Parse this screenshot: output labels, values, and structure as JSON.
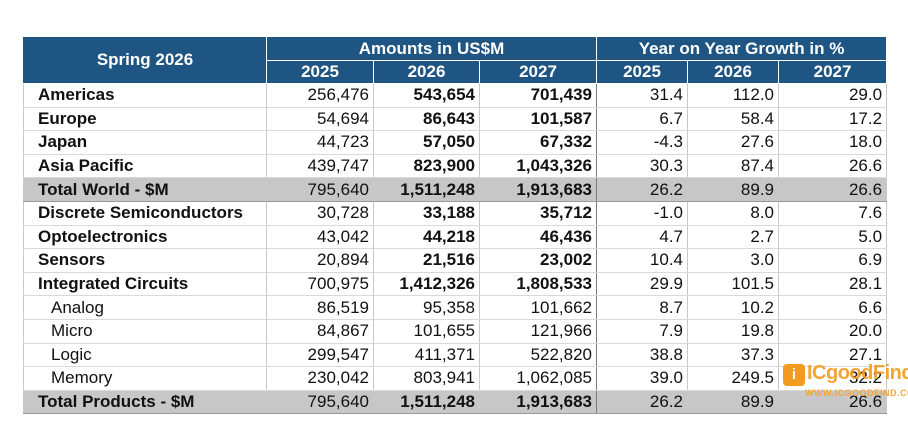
{
  "header": {
    "corner": "Spring 2026",
    "group1": "Amounts in US$M",
    "group2": "Year on Year Growth in %",
    "years": [
      "2025",
      "2026",
      "2027",
      "2025",
      "2026",
      "2027"
    ]
  },
  "rows": [
    {
      "label": "Americas",
      "type": "main",
      "v": [
        "256,476",
        "543,654",
        "701,439",
        "31.4",
        "112.0",
        "29.0"
      ]
    },
    {
      "label": "Europe",
      "type": "main",
      "v": [
        "54,694",
        "86,643",
        "101,587",
        "6.7",
        "58.4",
        "17.2"
      ]
    },
    {
      "label": "Japan",
      "type": "main",
      "v": [
        "44,723",
        "57,050",
        "67,332",
        "-4.3",
        "27.6",
        "18.0"
      ]
    },
    {
      "label": "Asia Pacific",
      "type": "main",
      "v": [
        "439,747",
        "823,900",
        "1,043,326",
        "30.3",
        "87.4",
        "26.6"
      ]
    },
    {
      "label": "Total World - $M",
      "type": "total",
      "v": [
        "795,640",
        "1,511,248",
        "1,913,683",
        "26.2",
        "89.9",
        "26.6"
      ]
    },
    {
      "label": "Discrete Semiconductors",
      "type": "main",
      "v": [
        "30,728",
        "33,188",
        "35,712",
        "-1.0",
        "8.0",
        "7.6"
      ]
    },
    {
      "label": "Optoelectronics",
      "type": "main",
      "v": [
        "43,042",
        "44,218",
        "46,436",
        "4.7",
        "2.7",
        "5.0"
      ]
    },
    {
      "label": "Sensors",
      "type": "main",
      "v": [
        "20,894",
        "21,516",
        "23,002",
        "10.4",
        "3.0",
        "6.9"
      ]
    },
    {
      "label": "Integrated Circuits",
      "type": "main",
      "v": [
        "700,975",
        "1,412,326",
        "1,808,533",
        "29.9",
        "101.5",
        "28.1"
      ]
    },
    {
      "label": "Analog",
      "type": "sub",
      "v": [
        "86,519",
        "95,358",
        "101,662",
        "8.7",
        "10.2",
        "6.6"
      ]
    },
    {
      "label": "Micro",
      "type": "sub",
      "v": [
        "84,867",
        "101,655",
        "121,966",
        "7.9",
        "19.8",
        "20.0"
      ]
    },
    {
      "label": "Logic",
      "type": "sub",
      "v": [
        "299,547",
        "411,371",
        "522,820",
        "38.8",
        "37.3",
        "27.1"
      ]
    },
    {
      "label": "Memory",
      "type": "sub",
      "v": [
        "230,042",
        "803,941",
        "1,062,085",
        "39.0",
        "249.5",
        "32.2"
      ]
    },
    {
      "label": "Total Products - $M",
      "type": "total",
      "v": [
        "795,640",
        "1,511,248",
        "1,913,683",
        "26.2",
        "89.9",
        "26.6"
      ]
    }
  ],
  "watermark": {
    "brand": "ICgoodFind",
    "url": "WWW.ICGOODFIND.COM",
    "color": "#f39b1f"
  },
  "colors": {
    "header_bg": "#1f5583",
    "total_bg": "#c7c7c7"
  }
}
